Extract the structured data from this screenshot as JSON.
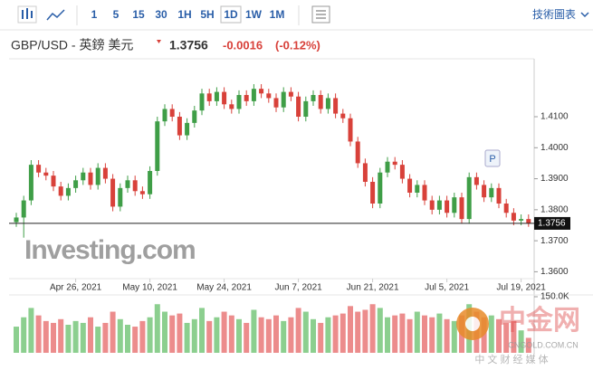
{
  "toolbar": {
    "intervals": [
      "1",
      "5",
      "15",
      "30",
      "1H",
      "5H",
      "1D",
      "1W",
      "1M"
    ],
    "active": "1D",
    "chart_link": "技術圖表"
  },
  "header": {
    "symbol": "GBP/USD - 英鎊 美元",
    "price": "1.3756",
    "change": "-0.0016",
    "change_pct": "(-0.12%)"
  },
  "watermark": "Investing.com",
  "cngold": {
    "name": "中金网",
    "domain": "CNGOLD.COM.CN",
    "slogan": "中 文 财 经 媒 体"
  },
  "badge": "P",
  "chart_data": {
    "type": "candlestick",
    "categories": [
      null,
      null,
      null,
      null,
      null,
      null,
      null,
      null,
      "Apr 26, 2021",
      null,
      null,
      null,
      null,
      null,
      null,
      null,
      null,
      null,
      "May 10, 2021",
      null,
      null,
      null,
      null,
      null,
      null,
      null,
      null,
      null,
      "May 24, 2021",
      null,
      null,
      null,
      null,
      null,
      null,
      null,
      null,
      null,
      "Jun 7, 2021",
      null,
      null,
      null,
      null,
      null,
      null,
      null,
      null,
      null,
      "Jun 21, 2021",
      null,
      null,
      null,
      null,
      null,
      null,
      null,
      null,
      null,
      "Jul 5, 2021",
      null,
      null,
      null,
      null,
      null,
      null,
      null,
      null,
      null,
      "Jul 19, 2021",
      null
    ],
    "open": [
      1.376,
      1.3775,
      1.383,
      1.3945,
      1.392,
      1.391,
      1.3875,
      1.3845,
      1.387,
      1.3895,
      1.392,
      1.388,
      1.3935,
      1.39,
      1.381,
      1.387,
      1.3895,
      1.386,
      1.385,
      1.3925,
      1.4085,
      1.4125,
      1.41,
      1.404,
      1.408,
      1.412,
      1.4175,
      1.415,
      1.418,
      1.414,
      1.4125,
      1.417,
      1.415,
      1.419,
      1.4175,
      1.416,
      1.413,
      1.418,
      1.4165,
      1.41,
      1.415,
      1.417,
      1.4125,
      1.416,
      1.411,
      1.4095,
      1.402,
      1.395,
      1.389,
      1.382,
      1.392,
      1.3955,
      1.3945,
      1.39,
      1.3855,
      1.388,
      1.383,
      1.38,
      1.383,
      1.379,
      1.384,
      1.377,
      1.3905,
      1.388,
      1.384,
      1.387,
      1.382,
      1.379,
      1.3765,
      1.377
    ],
    "high": [
      1.379,
      1.3845,
      1.396,
      1.396,
      1.3935,
      1.3925,
      1.389,
      1.3885,
      1.391,
      1.3935,
      1.3935,
      1.395,
      1.395,
      1.3915,
      1.3885,
      1.391,
      1.391,
      1.3875,
      1.394,
      1.41,
      1.414,
      1.414,
      1.4115,
      1.4095,
      1.4135,
      1.419,
      1.419,
      1.4195,
      1.4195,
      1.4155,
      1.4185,
      1.4185,
      1.4205,
      1.4205,
      1.419,
      1.4175,
      1.4195,
      1.4195,
      1.418,
      1.4165,
      1.4185,
      1.4185,
      1.4175,
      1.4175,
      1.4125,
      1.411,
      1.4035,
      1.3965,
      1.3905,
      1.3935,
      1.397,
      1.397,
      1.396,
      1.3915,
      1.3895,
      1.3895,
      1.3845,
      1.3845,
      1.3845,
      1.3855,
      1.3855,
      1.392,
      1.392,
      1.3895,
      1.3885,
      1.3885,
      1.3835,
      1.3805,
      1.3785,
      1.3785
    ],
    "low": [
      1.3745,
      1.371,
      1.3815,
      1.3905,
      1.3895,
      1.386,
      1.383,
      1.383,
      1.3855,
      1.388,
      1.3865,
      1.3865,
      1.3885,
      1.3795,
      1.3795,
      1.3855,
      1.3845,
      1.3835,
      1.3835,
      1.391,
      1.407,
      1.4085,
      1.4025,
      1.4025,
      1.4065,
      1.4105,
      1.4135,
      1.4135,
      1.4125,
      1.411,
      1.411,
      1.4135,
      1.4135,
      1.416,
      1.4145,
      1.4115,
      1.4115,
      1.415,
      1.4085,
      1.4085,
      1.4135,
      1.411,
      1.411,
      1.4095,
      1.408,
      1.4005,
      1.3935,
      1.3875,
      1.3805,
      1.3805,
      1.3905,
      1.393,
      1.3885,
      1.384,
      1.384,
      1.3815,
      1.3785,
      1.3785,
      1.3775,
      1.3775,
      1.3755,
      1.3755,
      1.3865,
      1.3825,
      1.3825,
      1.3805,
      1.3775,
      1.375,
      1.375,
      1.3745
    ],
    "close": [
      1.3775,
      1.383,
      1.3945,
      1.392,
      1.391,
      1.3875,
      1.3845,
      1.387,
      1.3895,
      1.392,
      1.388,
      1.3935,
      1.39,
      1.381,
      1.387,
      1.3895,
      1.386,
      1.385,
      1.3925,
      1.4085,
      1.4125,
      1.41,
      1.404,
      1.408,
      1.412,
      1.4175,
      1.415,
      1.418,
      1.414,
      1.4125,
      1.417,
      1.415,
      1.419,
      1.4175,
      1.416,
      1.413,
      1.418,
      1.4165,
      1.41,
      1.415,
      1.417,
      1.4125,
      1.416,
      1.411,
      1.4095,
      1.402,
      1.395,
      1.389,
      1.382,
      1.392,
      1.3955,
      1.3945,
      1.39,
      1.3855,
      1.388,
      1.383,
      1.38,
      1.383,
      1.379,
      1.384,
      1.377,
      1.3905,
      1.388,
      1.384,
      1.387,
      1.382,
      1.379,
      1.3765,
      1.377,
      1.3756
    ],
    "volume": [
      70000,
      95000,
      120000,
      100000,
      85000,
      80000,
      90000,
      75000,
      85000,
      80000,
      95000,
      70000,
      80000,
      110000,
      90000,
      75000,
      70000,
      85000,
      95000,
      130000,
      110000,
      100000,
      105000,
      80000,
      90000,
      120000,
      85000,
      95000,
      110000,
      100000,
      90000,
      80000,
      115000,
      95000,
      90000,
      100000,
      85000,
      95000,
      120000,
      110000,
      90000,
      80000,
      95000,
      100000,
      105000,
      125000,
      110000,
      115000,
      130000,
      120000,
      95000,
      100000,
      105000,
      90000,
      110000,
      100000,
      95000,
      105000,
      90000,
      85000,
      100000,
      130000,
      110000,
      95000,
      100000,
      90000,
      80000,
      85000,
      60000,
      40000
    ],
    "ylim": [
      1.3572,
      1.4278
    ],
    "yticks": [
      {
        "value": 1.36,
        "label": "1.3600"
      },
      {
        "value": 1.37,
        "label": "1.3700"
      },
      {
        "value": 1.38,
        "label": "1.3800"
      },
      {
        "value": 1.39,
        "label": "1.3900"
      },
      {
        "value": 1.4,
        "label": "1.4000"
      },
      {
        "value": 1.41,
        "label": "1.4100"
      }
    ],
    "volume_lim": [
      0,
      150000
    ],
    "volume_ticks": [
      {
        "value": 150000,
        "label": "150.0K"
      }
    ],
    "last_price": {
      "value": 1.3756,
      "label": "1.3756"
    },
    "up_color": "#3f9e47",
    "down_color": "#d8413a",
    "up_volume_color": "#8ccf8f",
    "down_volume_color": "#ec8c8c"
  }
}
